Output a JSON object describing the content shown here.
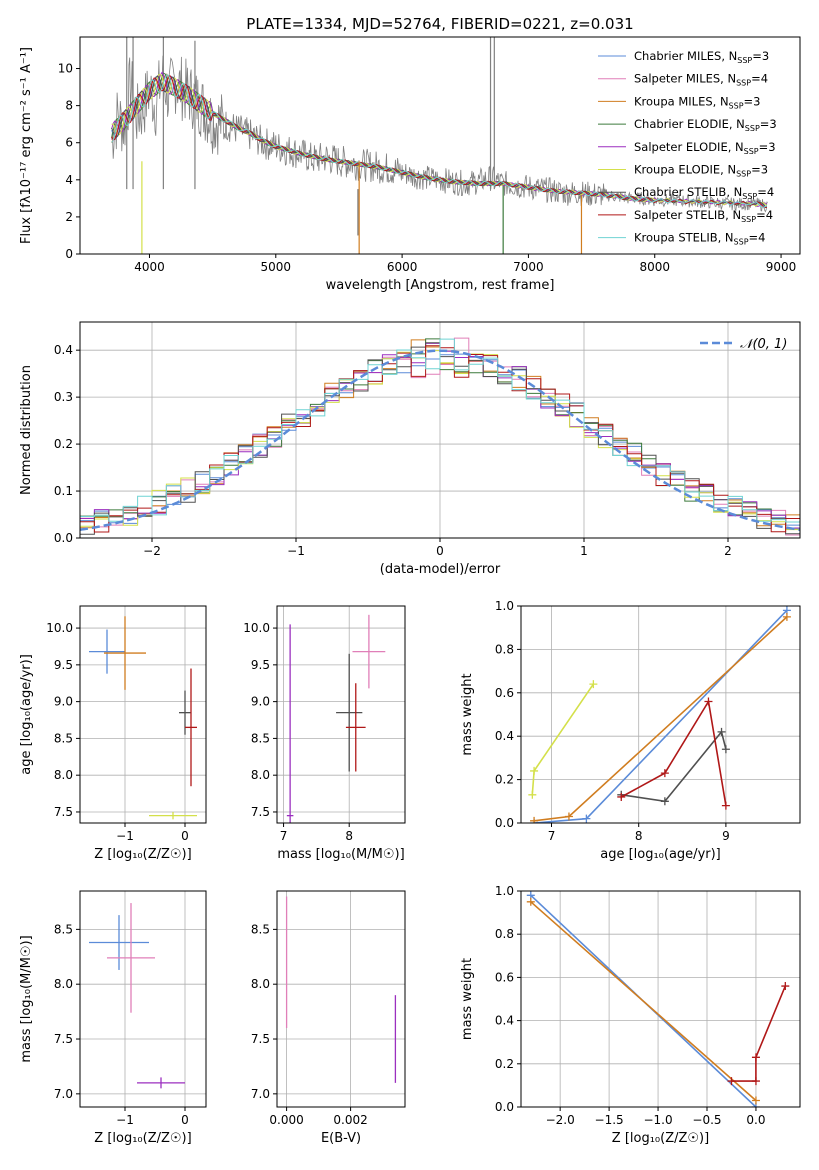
{
  "title": "PLATE=1334, MJD=52764, FIBERID=0221, z=0.031",
  "series_styles": [
    {
      "name": "Chabrier MILES",
      "nssp": "3",
      "color": "#5b8bd8"
    },
    {
      "name": "Salpeter MILES",
      "nssp": "4",
      "color": "#e07fb8"
    },
    {
      "name": "Kroupa MILES",
      "nssp": "3",
      "color": "#d07d20"
    },
    {
      "name": "Chabrier ELODIE",
      "nssp": "3",
      "color": "#3c7a3c"
    },
    {
      "name": "Salpeter ELODIE",
      "nssp": "3",
      "color": "#9b2fbf"
    },
    {
      "name": "Kroupa ELODIE",
      "nssp": "3",
      "color": "#d4e04a"
    },
    {
      "name": "Chabrier STELIB",
      "nssp": "4",
      "color": "#505050"
    },
    {
      "name": "Salpeter STELIB",
      "nssp": "4",
      "color": "#b01818"
    },
    {
      "name": "Kroupa STELIB",
      "nssp": "4",
      "color": "#6fd3d3"
    }
  ],
  "chart_data": [
    {
      "id": "spectrum",
      "type": "line",
      "xlabel": "wavelength [Angstrom, rest frame]",
      "ylabel": "Flux [fλ10⁻¹⁷ erg cm⁻² s⁻¹ A⁻¹]",
      "xlim": [
        3450,
        9150
      ],
      "ylim": [
        0,
        11.7
      ],
      "xticks": [
        4000,
        5000,
        6000,
        7000,
        8000,
        9000
      ],
      "yticks": [
        0,
        2,
        4,
        6,
        8,
        10
      ],
      "data_color": "#808080",
      "data_points": [
        [
          3700,
          6.2
        ],
        [
          3750,
          7.5
        ],
        [
          3800,
          6.8
        ],
        [
          3850,
          9.2
        ],
        [
          3900,
          7.4
        ],
        [
          3950,
          7.8
        ],
        [
          4000,
          8.9
        ],
        [
          4050,
          8.0
        ],
        [
          4100,
          9.6
        ],
        [
          4150,
          8.6
        ],
        [
          4200,
          9.3
        ],
        [
          4300,
          8.7
        ],
        [
          4400,
          8.1
        ],
        [
          4500,
          7.2
        ],
        [
          4600,
          7.0
        ],
        [
          4700,
          6.7
        ],
        [
          4800,
          6.4
        ],
        [
          4900,
          6.0
        ],
        [
          5000,
          5.8
        ],
        [
          5100,
          5.6
        ],
        [
          5200,
          5.4
        ],
        [
          5300,
          5.1
        ],
        [
          5400,
          5.2
        ],
        [
          5500,
          5.0
        ],
        [
          5600,
          4.9
        ],
        [
          5700,
          4.8
        ],
        [
          5800,
          4.7
        ],
        [
          5900,
          4.6
        ],
        [
          6000,
          4.4
        ],
        [
          6100,
          4.2
        ],
        [
          6200,
          4.1
        ],
        [
          6300,
          4.0
        ],
        [
          6400,
          3.9
        ],
        [
          6500,
          3.8
        ],
        [
          6600,
          3.9
        ],
        [
          6700,
          4.1
        ],
        [
          6800,
          3.8
        ],
        [
          6900,
          3.7
        ],
        [
          7000,
          3.6
        ],
        [
          7100,
          3.5
        ],
        [
          7200,
          3.4
        ],
        [
          7300,
          3.3
        ],
        [
          7400,
          3.3
        ],
        [
          7500,
          3.2
        ],
        [
          7600,
          3.2
        ],
        [
          7700,
          3.1
        ],
        [
          7800,
          3.0
        ],
        [
          7900,
          3.0
        ],
        [
          8000,
          2.9
        ],
        [
          8200,
          2.9
        ],
        [
          8400,
          2.8
        ],
        [
          8600,
          2.7
        ],
        [
          8800,
          2.7
        ],
        [
          8900,
          2.6
        ]
      ],
      "model_points": [
        [
          3700,
          6.5
        ],
        [
          3800,
          7.2
        ],
        [
          3900,
          8.0
        ],
        [
          4000,
          8.8
        ],
        [
          4100,
          9.3
        ],
        [
          4200,
          9.0
        ],
        [
          4300,
          8.6
        ],
        [
          4400,
          8.1
        ],
        [
          4500,
          7.6
        ],
        [
          4600,
          7.2
        ],
        [
          4700,
          6.8
        ],
        [
          4800,
          6.5
        ],
        [
          4900,
          6.1
        ],
        [
          5000,
          5.8
        ],
        [
          5200,
          5.4
        ],
        [
          5400,
          5.1
        ],
        [
          5600,
          4.9
        ],
        [
          5800,
          4.7
        ],
        [
          6000,
          4.4
        ],
        [
          6200,
          4.1
        ],
        [
          6400,
          3.9
        ],
        [
          6600,
          3.8
        ],
        [
          6800,
          3.8
        ],
        [
          7000,
          3.6
        ],
        [
          7200,
          3.4
        ],
        [
          7400,
          3.3
        ],
        [
          7600,
          3.2
        ],
        [
          7800,
          3.0
        ],
        [
          8000,
          2.9
        ],
        [
          8400,
          2.8
        ],
        [
          8800,
          2.7
        ],
        [
          8900,
          2.6
        ]
      ],
      "model_cutoffs": [
        {
          "series": "Kroupa MILES",
          "x": 7420
        },
        {
          "series": "Chabrier ELODIE",
          "x": 6800
        }
      ]
    },
    {
      "id": "residuals",
      "type": "histogram",
      "xlabel": "(data-model)/error",
      "ylabel": "Normed distribution",
      "xlim": [
        -2.5,
        2.5
      ],
      "ylim": [
        0,
        0.46
      ],
      "xticks": [
        -2,
        -1,
        0,
        1,
        2
      ],
      "yticks": [
        0.0,
        0.1,
        0.2,
        0.3,
        0.4
      ],
      "legend": "𝒩(0, 1)"
    },
    {
      "id": "age_vs_Z",
      "type": "scatter",
      "xlabel": "Z [log₁₀(Z/Z☉)]",
      "ylabel": "age  [log₁₀(age/yr)]",
      "xlim": [
        -1.75,
        0.35
      ],
      "ylim": [
        7.35,
        10.3
      ],
      "xticks": [
        -1,
        0
      ],
      "yticks": [
        7.5,
        8.0,
        8.5,
        9.0,
        9.5,
        10.0
      ],
      "points": [
        {
          "series": "Chabrier MILES",
          "x": -1.3,
          "xerr": 0.3,
          "y": 9.68,
          "yerr": 0.3
        },
        {
          "series": "Kroupa MILES",
          "x": -1.0,
          "xerr": 0.35,
          "y": 9.66,
          "yerr": 0.5
        },
        {
          "series": "Chabrier STELIB",
          "x": 0.0,
          "xerr": 0.1,
          "y": 8.85,
          "yerr": 0.3
        },
        {
          "series": "Salpeter STELIB",
          "x": 0.1,
          "xerr": 0.1,
          "y": 8.65,
          "yerr": 0.8
        },
        {
          "series": "Kroupa ELODIE",
          "x": -0.2,
          "xerr": 0.4,
          "y": 7.45,
          "yerr": 0.05
        }
      ]
    },
    {
      "id": "age_vs_mass",
      "type": "scatter",
      "xlabel": "mass [log₁₀(M/M☉)]",
      "ylabel": "",
      "xlim": [
        6.9,
        8.85
      ],
      "ylim": [
        7.35,
        10.3
      ],
      "xticks": [
        7,
        8
      ],
      "yticks": [
        7.5,
        8.0,
        8.5,
        9.0,
        9.5,
        10.0
      ],
      "points": [
        {
          "series": "Salpeter MILES",
          "x": 8.3,
          "xerr": 0.25,
          "y": 9.68,
          "yerr": 0.5
        },
        {
          "series": "Chabrier STELIB",
          "x": 8.0,
          "xerr": 0.2,
          "y": 8.85,
          "yerr": 0.8
        },
        {
          "series": "Salpeter STELIB",
          "x": 8.1,
          "xerr": 0.15,
          "y": 8.65,
          "yerr": 0.6
        },
        {
          "series": "Salpeter ELODIE",
          "x": 7.1,
          "xerr": 0.05,
          "y": 7.45,
          "yerr": 2.6
        }
      ]
    },
    {
      "id": "weight_vs_age",
      "type": "line",
      "xlabel": "age  [log₁₀(age/yr)]",
      "ylabel": "mass weight",
      "xlim": [
        6.65,
        9.85
      ],
      "ylim": [
        0,
        1
      ],
      "xticks": [
        7,
        8,
        9
      ],
      "yticks": [
        0.0,
        0.2,
        0.4,
        0.6,
        0.8,
        1.0
      ],
      "series": [
        {
          "name": "Chabrier MILES",
          "x": [
            6.8,
            7.4,
            9.7
          ],
          "y": [
            0.0,
            0.02,
            0.98
          ]
        },
        {
          "name": "Kroupa MILES",
          "x": [
            6.8,
            7.2,
            9.7
          ],
          "y": [
            0.01,
            0.03,
            0.95
          ]
        },
        {
          "name": "Kroupa ELODIE",
          "x": [
            6.78,
            6.8,
            7.48
          ],
          "y": [
            0.13,
            0.24,
            0.64
          ]
        },
        {
          "name": "Chabrier STELIB",
          "x": [
            7.8,
            8.3,
            8.95,
            9.0
          ],
          "y": [
            0.13,
            0.1,
            0.42,
            0.34
          ]
        },
        {
          "name": "Salpeter STELIB",
          "x": [
            7.8,
            8.3,
            8.8,
            9.0
          ],
          "y": [
            0.12,
            0.23,
            0.56,
            0.08
          ]
        }
      ]
    },
    {
      "id": "mass_vs_Z",
      "type": "scatter",
      "xlabel": "Z [log₁₀(Z/Z☉)]",
      "ylabel": "mass [log₁₀(M/M☉)]",
      "xlim": [
        -1.75,
        0.35
      ],
      "ylim": [
        6.88,
        8.85
      ],
      "xticks": [
        -1,
        0
      ],
      "yticks": [
        7.0,
        7.5,
        8.0,
        8.5
      ],
      "points": [
        {
          "series": "Chabrier MILES",
          "x": -1.1,
          "xerr": 0.5,
          "y": 8.38,
          "yerr": 0.25
        },
        {
          "series": "Salpeter MILES",
          "x": -0.9,
          "xerr": 0.4,
          "y": 8.24,
          "yerr": 0.5
        },
        {
          "series": "Salpeter ELODIE",
          "x": -0.4,
          "xerr": 0.4,
          "y": 7.1,
          "yerr": 0.05
        }
      ]
    },
    {
      "id": "mass_vs_ebv",
      "type": "scatter",
      "xlabel": "E(B-V)",
      "ylabel": "",
      "xlim": [
        -0.0003,
        0.0037
      ],
      "ylim": [
        6.88,
        8.85
      ],
      "xticks": [
        0.0,
        0.002
      ],
      "yticks": [
        7.0,
        7.5,
        8.0,
        8.5
      ],
      "points": [
        {
          "series": "Salpeter MILES",
          "x": 0.0,
          "xerr": 0,
          "y": 8.2,
          "yerr": 0.6
        },
        {
          "series": "Salpeter ELODIE",
          "x": 0.0034,
          "xerr": 0,
          "y": 7.5,
          "yerr": 0.4
        }
      ]
    },
    {
      "id": "weight_vs_Z",
      "type": "line",
      "xlabel": "Z [log₁₀(Z/Z☉)]",
      "ylabel": "mass weight",
      "xlim": [
        -2.4,
        0.45
      ],
      "ylim": [
        0,
        1
      ],
      "xticks": [
        -2.0,
        -1.5,
        -1.0,
        -0.5,
        0.0
      ],
      "yticks": [
        0.0,
        0.2,
        0.4,
        0.6,
        0.8,
        1.0
      ],
      "series": [
        {
          "name": "Chabrier MILES",
          "x": [
            -2.3,
            0.0
          ],
          "y": [
            0.98,
            0.0
          ]
        },
        {
          "name": "Kroupa MILES",
          "x": [
            -2.3,
            0.0
          ],
          "y": [
            0.95,
            0.03
          ]
        },
        {
          "name": "Salpeter STELIB",
          "x": [
            -0.25,
            0.0,
            0.0,
            0.3
          ],
          "y": [
            0.12,
            0.12,
            0.23,
            0.56
          ]
        }
      ]
    }
  ],
  "tick_labels": {
    "spectrum_x": [
      "4000",
      "5000",
      "6000",
      "7000",
      "8000",
      "9000"
    ],
    "spectrum_y": [
      "0",
      "2",
      "4",
      "6",
      "8",
      "10"
    ],
    "residuals_x": [
      "−2",
      "−1",
      "0",
      "1",
      "2"
    ],
    "residuals_y": [
      "0.0",
      "0.1",
      "0.2",
      "0.3",
      "0.4"
    ],
    "age_y": [
      "7.5",
      "8.0",
      "8.5",
      "9.0",
      "9.5",
      "10.0"
    ],
    "z_x": [
      "−1",
      "0"
    ],
    "mass_x": [
      "7",
      "8"
    ],
    "weight_y": [
      "0.0",
      "0.2",
      "0.4",
      "0.6",
      "0.8",
      "1.0"
    ],
    "age_x": [
      "7",
      "8",
      "9"
    ],
    "mass_y": [
      "7.0",
      "7.5",
      "8.0",
      "8.5"
    ],
    "ebv_x": [
      "0.000",
      "0.002"
    ],
    "wz_x": [
      "−2.0",
      "−1.5",
      "−1.0",
      "−0.5",
      "0.0"
    ]
  }
}
